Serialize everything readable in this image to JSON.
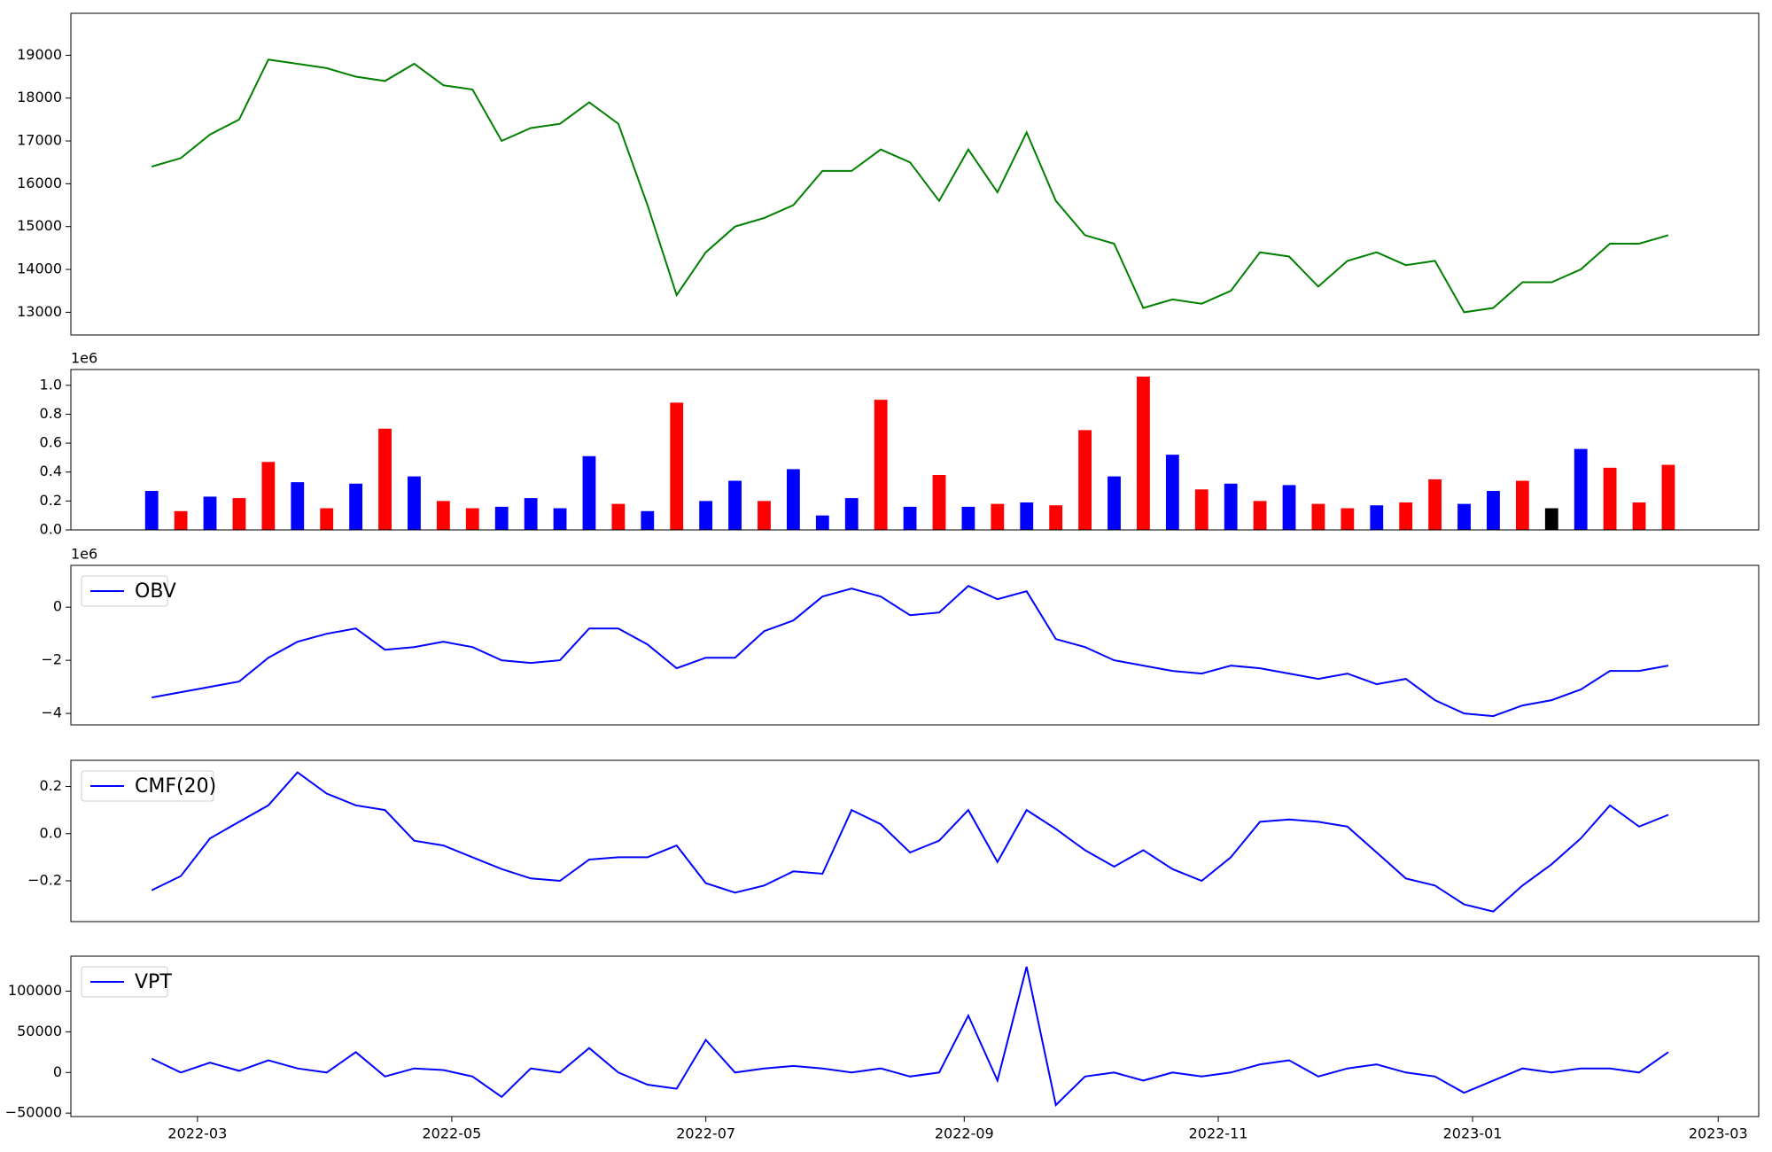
{
  "chart_data": [
    {
      "type": "line",
      "color": "#008000",
      "values": [
        16400,
        16600,
        17150,
        17500,
        18900,
        18800,
        18700,
        18500,
        18400,
        18800,
        18300,
        18200,
        17000,
        17300,
        17400,
        17900,
        17400,
        15500,
        13400,
        14400,
        15000,
        15200,
        15500,
        16300,
        16300,
        16800,
        16500,
        15600,
        16800,
        15800,
        17200,
        15600,
        14800,
        14600,
        13100,
        13300,
        13200,
        13500,
        14400,
        14300,
        13600,
        14200,
        14400,
        14100,
        14200,
        13000,
        13100,
        13700,
        13700,
        14000,
        14600,
        14600,
        14800
      ],
      "xlim": [
        -2.77,
        55.1
      ],
      "ylim": [
        12470,
        19980
      ],
      "yticks": [
        13000,
        14000,
        15000,
        16000,
        17000,
        18000,
        19000
      ]
    },
    {
      "type": "bar",
      "offset_label": "1e6",
      "values": [
        270000,
        130000,
        230000,
        220000,
        470000,
        330000,
        150000,
        320000,
        700000,
        370000,
        200000,
        150000,
        160000,
        220000,
        150000,
        510000,
        180000,
        130000,
        880000,
        200000,
        340000,
        200000,
        420000,
        100000,
        220000,
        900000,
        160000,
        380000,
        160000,
        180000,
        190000,
        170000,
        690000,
        370000,
        1060000,
        520000,
        280000,
        320000,
        200000,
        310000,
        180000,
        150000,
        170000,
        190000,
        350000,
        180000,
        270000,
        340000,
        150000,
        560000,
        430000,
        190000,
        450000
      ],
      "colors": [
        "blue",
        "red",
        "blue",
        "red",
        "red",
        "blue",
        "red",
        "blue",
        "red",
        "blue",
        "red",
        "red",
        "blue",
        "blue",
        "blue",
        "blue",
        "red",
        "blue",
        "red",
        "blue",
        "blue",
        "red",
        "blue",
        "blue",
        "blue",
        "red",
        "blue",
        "red",
        "blue",
        "red",
        "blue",
        "red",
        "red",
        "blue",
        "red",
        "blue",
        "red",
        "blue",
        "red",
        "blue",
        "red",
        "red",
        "blue",
        "red",
        "red",
        "blue",
        "blue",
        "red",
        "black",
        "blue",
        "red",
        "red",
        "red"
      ],
      "xlim": [
        -2.77,
        55.1
      ],
      "ylim": [
        0,
        1109000
      ],
      "yticks": [
        {
          "value": 0,
          "label": "0.0"
        },
        {
          "value": 200000,
          "label": "0.2"
        },
        {
          "value": 400000,
          "label": "0.4"
        },
        {
          "value": 600000,
          "label": "0.6"
        },
        {
          "value": 800000,
          "label": "0.8"
        },
        {
          "value": 1000000,
          "label": "1.0"
        }
      ]
    },
    {
      "type": "line",
      "offset_label": "1e6",
      "legend": "upper left",
      "series": [
        {
          "name": "OBV",
          "color": "blue",
          "values": [
            -3400000,
            -3200000,
            -3000000,
            -2800000,
            -1900000,
            -1300000,
            -1000000,
            -800000,
            -1600000,
            -1500000,
            -1300000,
            -1500000,
            -2000000,
            -2100000,
            -2000000,
            -800000,
            -800000,
            -1400000,
            -2300000,
            -1900000,
            -1900000,
            -900000,
            -500000,
            400000,
            700000,
            400000,
            -300000,
            -200000,
            800000,
            300000,
            600000,
            -1200000,
            -1500000,
            -2000000,
            -2200000,
            -2400000,
            -2500000,
            -2200000,
            -2300000,
            -2500000,
            -2700000,
            -2500000,
            -2900000,
            -2700000,
            -3500000,
            -4000000,
            -4100000,
            -3700000,
            -3500000,
            -3100000,
            -2400000,
            -2400000,
            -2200000
          ]
        }
      ],
      "xlim": [
        -2.77,
        55.1
      ],
      "ylim": [
        -4430000,
        1574000
      ],
      "yticks": [
        {
          "value": -4000000,
          "label": "−4"
        },
        {
          "value": -2000000,
          "label": "−2"
        },
        0
      ]
    },
    {
      "type": "line",
      "legend": "upper left",
      "series": [
        {
          "name": "CMF(20)",
          "color": "blue",
          "values": [
            -0.24,
            -0.18,
            -0.02,
            0.05,
            0.12,
            0.26,
            0.17,
            0.12,
            0.1,
            -0.03,
            -0.05,
            -0.1,
            -0.15,
            -0.19,
            -0.2,
            -0.11,
            -0.1,
            -0.1,
            -0.05,
            -0.21,
            -0.25,
            -0.22,
            -0.16,
            -0.17,
            0.1,
            0.04,
            -0.08,
            -0.03,
            0.1,
            -0.12,
            0.1,
            0.02,
            -0.07,
            -0.14,
            -0.07,
            -0.15,
            -0.2,
            -0.1,
            0.05,
            0.06,
            0.05,
            0.03,
            -0.08,
            -0.19,
            -0.22,
            -0.3,
            -0.33,
            -0.22,
            -0.13,
            -0.02,
            0.12,
            0.03,
            0.08
          ]
        }
      ],
      "xlim": [
        -2.77,
        55.1
      ],
      "ylim": [
        -0.373,
        0.311
      ],
      "yticks": [
        {
          "value": -0.2,
          "label": "−0.2"
        },
        {
          "value": 0,
          "label": "0.0"
        },
        0.2
      ]
    },
    {
      "type": "line",
      "legend": "upper left",
      "series": [
        {
          "name": "VPT",
          "color": "blue",
          "values": [
            17000,
            0,
            12000,
            2000,
            15000,
            5000,
            0,
            25000,
            -5000,
            5000,
            3000,
            -5000,
            -30000,
            5000,
            0,
            30000,
            0,
            -15000,
            -20000,
            40000,
            0,
            5000,
            8000,
            5000,
            0,
            5000,
            -5000,
            0,
            70000,
            -10000,
            130000,
            -40000,
            -5000,
            0,
            -10000,
            0,
            -5000,
            0,
            10000,
            15000,
            -5000,
            5000,
            10000,
            0,
            -5000,
            -25000,
            -10000,
            5000,
            0,
            5000,
            5000,
            0,
            25000
          ]
        }
      ],
      "xlim": [
        -2.77,
        55.1
      ],
      "ylim": [
        -54200,
        143000
      ],
      "yticks": [
        {
          "value": -50000,
          "label": "−50000"
        },
        0,
        50000,
        100000
      ],
      "xticks": [
        {
          "value": 1.57,
          "label": "2022-03"
        },
        {
          "value": 10.29,
          "label": "2022-05"
        },
        {
          "value": 19.0,
          "label": "2022-07"
        },
        {
          "value": 27.86,
          "label": "2022-09"
        },
        {
          "value": 36.57,
          "label": "2022-11"
        },
        {
          "value": 45.29,
          "label": "2023-01"
        },
        {
          "value": 53.71,
          "label": "2023-03"
        }
      ]
    }
  ]
}
